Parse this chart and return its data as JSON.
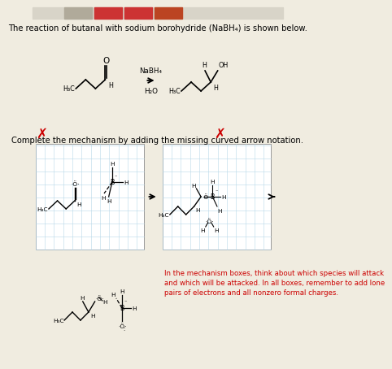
{
  "title_text": "The reaction of butanal with sodium borohydride (NaBH₄) is shown below.",
  "mechanism_title": "Complete the mechanism by adding the missing curved arrow notation.",
  "hint_text": "In the mechanism boxes, think about which species will attack\nand which will be attacked. In all boxes, remember to add lone\npairs of electrons and all nonzero formal charges.",
  "reagent_label": "NaBH₄",
  "solvent_label": "H₂O",
  "red_color": "#cc0000",
  "grid_color": "#b8d8e8",
  "background_color": "#f0ece0",
  "box_bg": "#ffffff",
  "tab_bar_color": "#d8d4c8",
  "tab1_color": "#b0aa9a",
  "tab2_color": "#cc3333",
  "tab3_color": "#cc3333",
  "tab4_color": "#bb4422",
  "font_size_title": 7.2,
  "font_size_small": 5.8,
  "font_size_atom": 6.5,
  "font_size_hint": 6.2
}
